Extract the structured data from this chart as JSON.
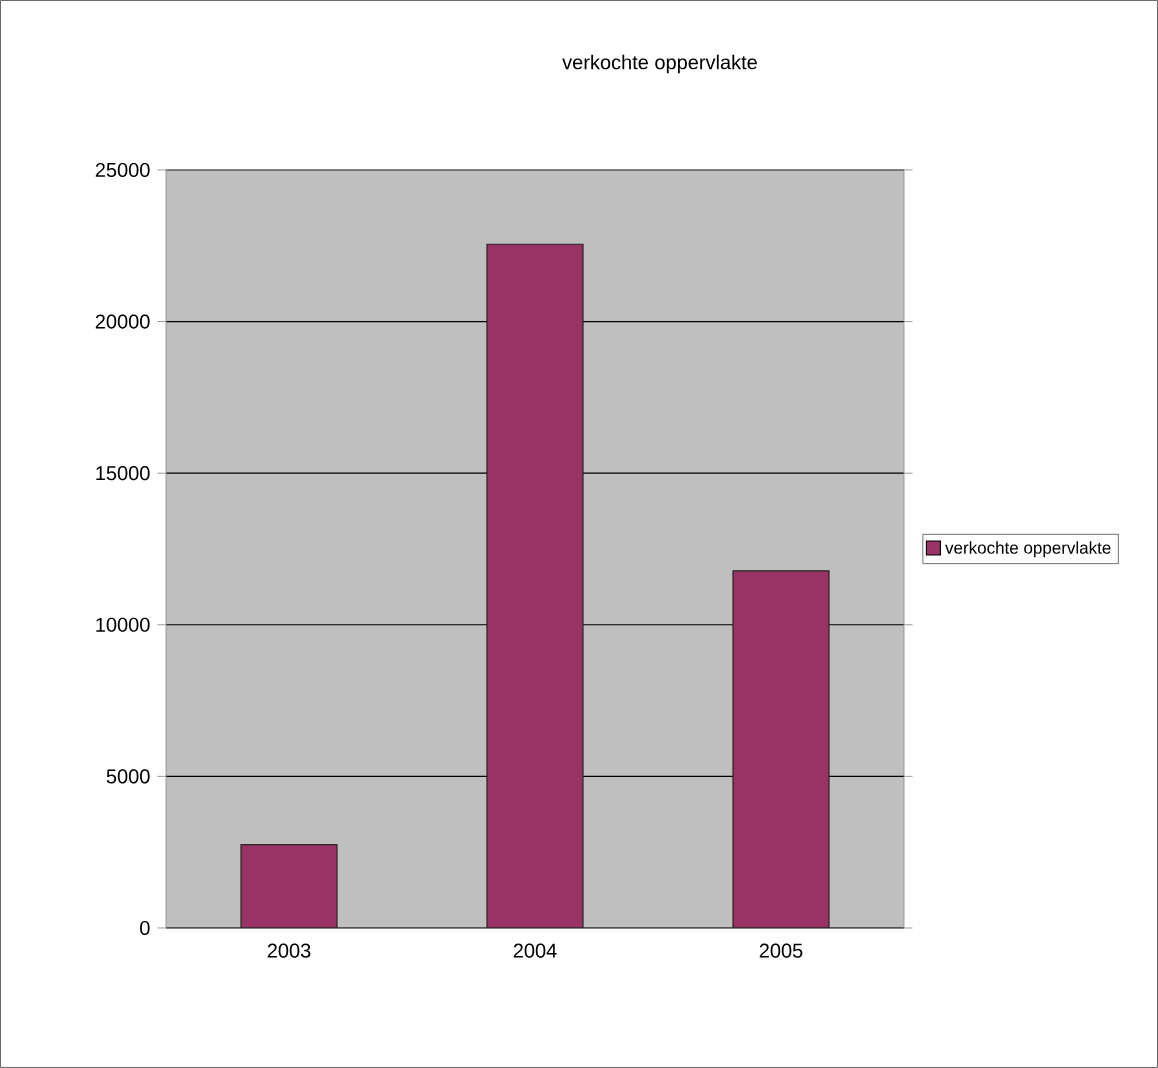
{
  "chart_data": {
    "type": "bar",
    "title": "verkochte oppervlakte",
    "categories": [
      "2003",
      "2004",
      "2005"
    ],
    "series": [
      {
        "name": "verkochte oppervlakte",
        "color": "#993366",
        "values": [
          2750,
          22550,
          11780
        ]
      }
    ],
    "ylim": [
      0,
      25000
    ],
    "yticks": [
      0,
      5000,
      10000,
      15000,
      20000,
      25000
    ],
    "grid": "y",
    "legend": "right"
  }
}
